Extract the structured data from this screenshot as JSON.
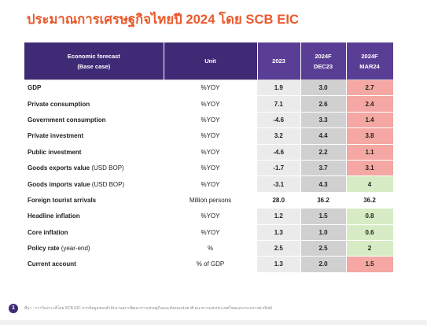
{
  "page": {
    "title": "ประมาณการเศรษฐกิจไทยปี 2024 โดย SCB EIC",
    "page_number": "1",
    "source_note": "ที่มา : การวิเคราะห์โดย SCB EIC จากข้อมูลของสำนักงานสภาพัฒนาการเศรษฐกิจและสังคมแห่งชาติ ธนาคารแห่งประเทศไทยและกระทรวงพาณิชย์"
  },
  "table": {
    "header": {
      "indicator_line1": "Economic forecast",
      "indicator_line2": "(Base case)",
      "unit": "Unit",
      "y2023": "2023",
      "dec_line1": "2024F",
      "dec_line2": "DEC23",
      "mar_line1": "2024F",
      "mar_line2": "MAR24"
    },
    "rows": [
      {
        "label": "GDP",
        "note": "",
        "unit": "%YOY",
        "y2023": "1.9",
        "dec23": "3.0",
        "mar24": "2.7",
        "status": "red"
      },
      {
        "label": "Private consumption",
        "note": "",
        "unit": "%YOY",
        "y2023": "7.1",
        "dec23": "2.6",
        "mar24": "2.4",
        "status": "red"
      },
      {
        "label": "Government consumption",
        "note": "",
        "unit": "%YOY",
        "y2023": "-4.6",
        "dec23": "3.3",
        "mar24": "1.4",
        "status": "red"
      },
      {
        "label": "Private investment",
        "note": "",
        "unit": "%YOY",
        "y2023": "3.2",
        "dec23": "4.4",
        "mar24": "3.8",
        "status": "red"
      },
      {
        "label": "Public investment",
        "note": "",
        "unit": "%YOY",
        "y2023": "-4.6",
        "dec23": "2.2",
        "mar24": "1.1",
        "status": "red"
      },
      {
        "label": "Goods exports value",
        "note": " (USD BOP)",
        "unit": "%YOY",
        "y2023": "-1.7",
        "dec23": "3.7",
        "mar24": "3.1",
        "status": "red"
      },
      {
        "label": "Goods imports value",
        "note": " (USD BOP)",
        "unit": "%YOY",
        "y2023": "-3.1",
        "dec23": "4.3",
        "mar24": "4",
        "status": "green"
      },
      {
        "label": "Foreign tourist arrivals",
        "note": "",
        "unit": "Million persons",
        "y2023": "28.0",
        "dec23": "36.2",
        "mar24": "36.2",
        "status": "plain"
      },
      {
        "label": "Headline inflation",
        "note": "",
        "unit": "%YOY",
        "y2023": "1.2",
        "dec23": "1.5",
        "mar24": "0.8",
        "status": "green"
      },
      {
        "label": "Core inflation",
        "note": "",
        "unit": "%YOY",
        "y2023": "1.3",
        "dec23": "1.0",
        "mar24": "0.6",
        "status": "green"
      },
      {
        "label": "Policy rate",
        "note": " (year-end)",
        "unit": "%",
        "y2023": "2.5",
        "dec23": "2.5",
        "mar24": "2",
        "status": "green"
      },
      {
        "label": "Current account",
        "note": "",
        "unit": "% of GDP",
        "y2023": "1.3",
        "dec23": "2.0",
        "mar24": "1.5",
        "status": "red"
      }
    ]
  },
  "colors": {
    "title_orange": "#E8582A",
    "header_purple": "#3F2A76",
    "decrease_red": "#F4A7A3",
    "increase_green": "#D7ECC4"
  }
}
